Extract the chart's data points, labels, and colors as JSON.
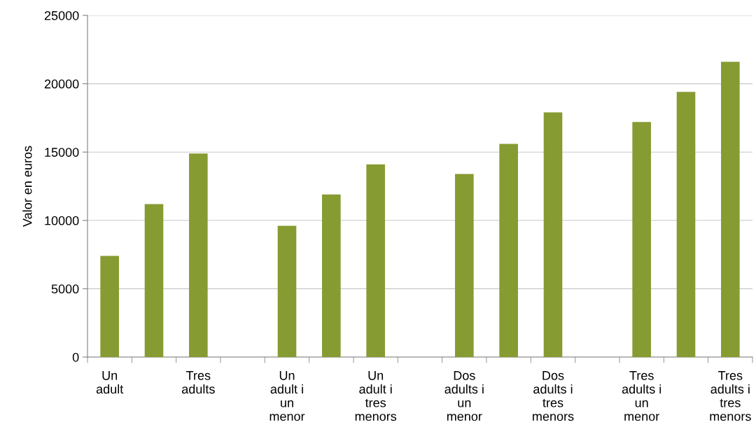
{
  "chart_data": {
    "type": "bar",
    "ylabel": "Valor en euros",
    "categories": [
      "Un\nadult",
      null,
      "Tres\nadults",
      null,
      "Un\nadult i\nun\nmenor",
      null,
      "Un\nadult i\ntres\nmenors",
      null,
      "Dos\nadults i\nun\nmenor",
      null,
      "Dos\nadults i\ntres\nmenors",
      null,
      "Tres\nadults i\nun\nmenor",
      null,
      "Tres\nadults i\ntres\nmenors"
    ],
    "values": [
      7400,
      11200,
      14900,
      null,
      9600,
      11900,
      14100,
      null,
      13400,
      15600,
      17900,
      null,
      17200,
      19400,
      21600
    ],
    "color": "#869b32",
    "ylim": [
      0,
      25000
    ],
    "yticks": [
      0,
      5000,
      10000,
      15000,
      20000,
      25000
    ],
    "grid": "y"
  }
}
